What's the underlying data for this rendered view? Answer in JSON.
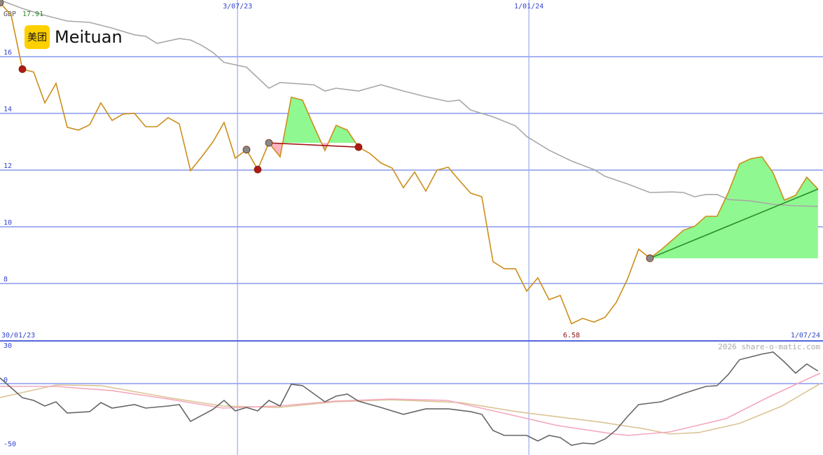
{
  "chart_data": [
    {
      "type": "line",
      "title": "Meituan",
      "logo_text": "美团",
      "currency": "GBP",
      "watermark": "2026 share-o-matic.com",
      "xlim": [
        0,
        73.2
      ],
      "xticks": [
        {
          "value": 0,
          "label": "30/01/23"
        },
        {
          "value": 21.2,
          "label": "3/07/23"
        },
        {
          "value": 47.2,
          "label": "1/01/24"
        },
        {
          "value": 73.2,
          "label": "1/07/24"
        }
      ],
      "ylim": [
        5.975,
        18
      ],
      "yticks": [
        8,
        10,
        12,
        14,
        16
      ],
      "grid": true,
      "series": [
        {
          "color": "#cc8e1a",
          "values": [
            17.91,
            17.46,
            15.56,
            15.46,
            14.37,
            15.06,
            13.51,
            13.41,
            13.6,
            14.37,
            13.75,
            13.98,
            14.0,
            13.53,
            13.53,
            13.85,
            13.63,
            11.98,
            12.47,
            12.99,
            13.68,
            12.42,
            12.72,
            12.02,
            12.96,
            12.47,
            14.57,
            14.47,
            13.56,
            12.69,
            13.58,
            13.41,
            12.81,
            12.59,
            12.25,
            12.07,
            11.38,
            11.93,
            11.26,
            12.0,
            12.1,
            11.63,
            11.19,
            11.06,
            8.77,
            8.52,
            8.52,
            7.73,
            8.2,
            7.43,
            7.58,
            6.58,
            6.77,
            6.64,
            6.81,
            7.33,
            8.15,
            9.21,
            8.89,
            9.19,
            9.53,
            9.88,
            10.02,
            10.37,
            10.37,
            11.21,
            12.22,
            12.4,
            12.47,
            11.9,
            10.94,
            11.11,
            11.75,
            11.33
          ]
        },
        {
          "color": "#a8a8a8",
          "x": [
            0,
            2,
            4,
            6,
            8,
            10,
            12,
            13,
            14,
            16,
            17,
            18,
            19,
            20,
            22,
            24,
            25,
            28,
            29,
            30,
            32,
            34,
            36,
            38,
            40,
            41,
            42,
            44,
            46,
            47,
            49,
            51,
            53,
            54,
            56,
            58,
            60,
            61,
            62,
            63,
            64,
            65,
            67,
            69,
            71,
            73
          ],
          "values": [
            18.0,
            17.7,
            17.46,
            17.26,
            17.21,
            17.01,
            16.77,
            16.72,
            16.47,
            16.64,
            16.59,
            16.4,
            16.15,
            15.8,
            15.63,
            14.89,
            15.09,
            15.01,
            14.79,
            14.89,
            14.79,
            15.01,
            14.79,
            14.59,
            14.42,
            14.47,
            14.12,
            13.88,
            13.56,
            13.19,
            12.7,
            12.32,
            12.02,
            11.78,
            11.51,
            11.21,
            11.23,
            11.21,
            11.06,
            11.14,
            11.14,
            10.96,
            10.91,
            10.79,
            10.74,
            10.72
          ]
        }
      ],
      "signals": [
        {
          "x": 0,
          "color": "#888888"
        },
        {
          "x": 2,
          "color": "#b01818"
        },
        {
          "x": 22,
          "color": "#888888"
        },
        {
          "x": 23,
          "color": "#b01818"
        },
        {
          "x": 24,
          "color": "#888888"
        },
        {
          "x": 32,
          "color": "#b01818"
        },
        {
          "x": 58,
          "color": "#888888"
        }
      ],
      "trend_lines": [
        {
          "from": 24,
          "to": 32,
          "color": "#a01010"
        },
        {
          "from": 58,
          "to": 73,
          "color": "#2a8a2a"
        }
      ]
    },
    {
      "type": "line",
      "ylim": [
        -55.7,
        33.3
      ],
      "yticks": [
        30,
        0,
        -50
      ],
      "series": [
        {
          "color": "#666666",
          "x": [
            0,
            2,
            3,
            4,
            5,
            6,
            8,
            9,
            10,
            12,
            13,
            15,
            16,
            17,
            19,
            20,
            21,
            22,
            23,
            24,
            25,
            26,
            27,
            29,
            30,
            31,
            32,
            34,
            36,
            38,
            40,
            42,
            43,
            44,
            45,
            47,
            48,
            49,
            50,
            51,
            52,
            53,
            54,
            55,
            56,
            57,
            59,
            61,
            63,
            64,
            65,
            66,
            68,
            69,
            70,
            71,
            72,
            73
          ],
          "values": [
            4.4,
            -11.0,
            -13.1,
            -17.5,
            -14.2,
            -23.0,
            -21.9,
            -14.8,
            -19.1,
            -16.4,
            -19.1,
            -17.5,
            -16.4,
            -29.5,
            -20.2,
            -13.1,
            -21.3,
            -18.6,
            -21.3,
            -13.1,
            -17.5,
            -0.5,
            -1.6,
            -14.2,
            -9.8,
            -8.2,
            -13.7,
            -18.6,
            -24.0,
            -19.7,
            -19.7,
            -21.9,
            -24.0,
            -36.6,
            -40.4,
            -40.4,
            -44.8,
            -40.4,
            -42.1,
            -48.1,
            -46.4,
            -47.0,
            -43.2,
            -36.1,
            -25.7,
            -16.4,
            -14.2,
            -7.7,
            -2.2,
            -1.6,
            7.1,
            18.6,
            23.0,
            24.6,
            16.9,
            8.2,
            15.3,
            9.8
          ]
        },
        {
          "color": "#f4a8bc",
          "x": [
            0,
            5,
            10,
            15,
            19.9,
            24.9,
            29.9,
            34.9,
            39.9,
            44.9,
            49.8,
            54.8,
            56.1,
            59.8,
            64.8,
            68.5,
            73.2
          ],
          "values": [
            -2.2,
            -2.2,
            -5.5,
            -12.0,
            -19.1,
            -17.5,
            -13.7,
            -12.0,
            -13.1,
            -23.0,
            -32.8,
            -39.3,
            -40.4,
            -37.7,
            -27.3,
            -10.9,
            8.2
          ]
        },
        {
          "color": "#dcc496",
          "x": [
            0,
            5,
            9,
            15,
            19.9,
            24.9,
            29.9,
            34.9,
            41.1,
            46.1,
            53.6,
            57.3,
            59.8,
            62.3,
            66,
            69.8,
            73.2
          ],
          "values": [
            -10.9,
            -1.1,
            -1.6,
            -10.9,
            -17.5,
            -18.6,
            -14.2,
            -12.6,
            -14.8,
            -21.9,
            -30.1,
            -35.0,
            -39.3,
            -38.3,
            -31.1,
            -17.5,
            0
          ]
        }
      ]
    }
  ]
}
